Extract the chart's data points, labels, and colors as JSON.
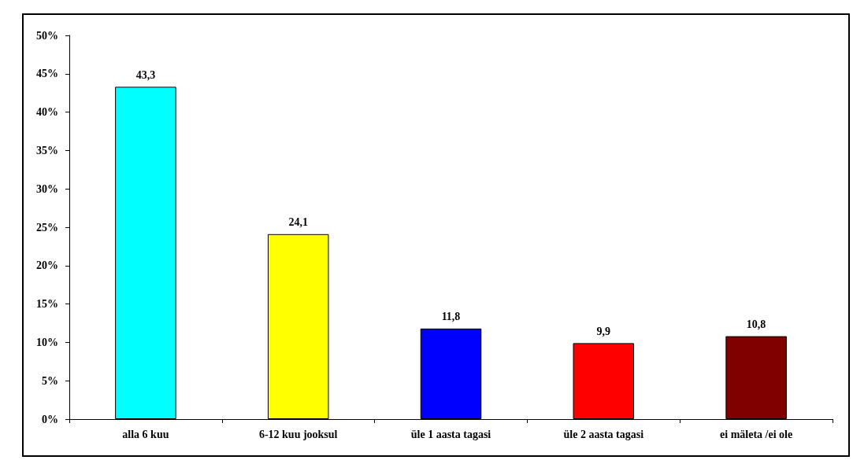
{
  "chart_data": {
    "type": "bar",
    "categories": [
      "alla 6 kuu",
      "6-12 kuu jooksul",
      "üle 1 aasta tagasi",
      "üle 2 aasta tagasi",
      "ei mäleta /ei ole"
    ],
    "values": [
      43.3,
      24.1,
      11.8,
      9.9,
      10.8
    ],
    "colors": [
      "#00ffff",
      "#ffff00",
      "#0000ff",
      "#ff0000",
      "#800000"
    ],
    "value_labels": [
      "43,3",
      "24,1",
      "11,8",
      "9,9",
      "10,8"
    ],
    "ylim": [
      0,
      50
    ],
    "yticks": [
      {
        "value": 0,
        "label": "0%"
      },
      {
        "value": 5,
        "label": "5%"
      },
      {
        "value": 10,
        "label": "10%"
      },
      {
        "value": 15,
        "label": "15%"
      },
      {
        "value": 20,
        "label": "20%"
      },
      {
        "value": 25,
        "label": "25%"
      },
      {
        "value": 30,
        "label": "30%"
      },
      {
        "value": 35,
        "label": "35%"
      },
      {
        "value": 40,
        "label": "40%"
      },
      {
        "value": 45,
        "label": "45%"
      },
      {
        "value": 50,
        "label": "50%"
      }
    ],
    "tick_labels": "xy"
  }
}
